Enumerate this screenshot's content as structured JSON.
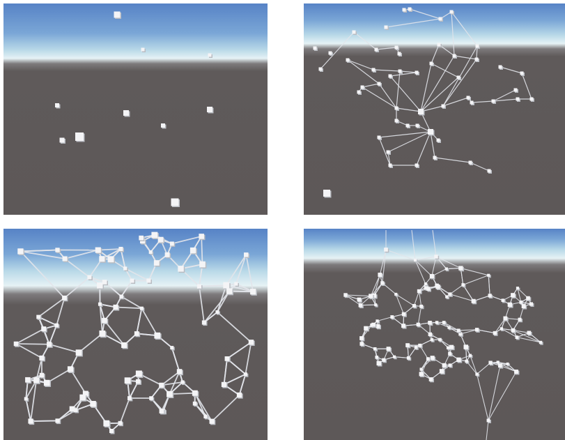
{
  "panels": [
    {
      "id": "p1",
      "stage": "scattered-nodes",
      "sky": {
        "top": "#5b87c7",
        "mid": "#a9cde2",
        "horizon": "#e9f3f6"
      },
      "ground": "#5e5959"
    },
    {
      "id": "p2",
      "stage": "partially-connected",
      "sky": {
        "top": "#5b87c7",
        "mid": "#a9cde2",
        "horizon": "#e9f3f6"
      },
      "ground": "#5e5959"
    },
    {
      "id": "p3",
      "stage": "dense-network-close",
      "sky": {
        "top": "#5b87c7",
        "mid": "#a9cde2",
        "horizon": "#e9f3f6"
      },
      "ground": "#5e5959"
    },
    {
      "id": "p4",
      "stage": "dense-network-far",
      "sky": {
        "top": "#5b87c7",
        "mid": "#a9cde2",
        "horizon": "#e9f3f6"
      },
      "ground": "#5e5959"
    }
  ],
  "colors": {
    "node": "#f4f4f6",
    "node_shade": "#b9bcc2",
    "edge": "#e2e4ea"
  }
}
